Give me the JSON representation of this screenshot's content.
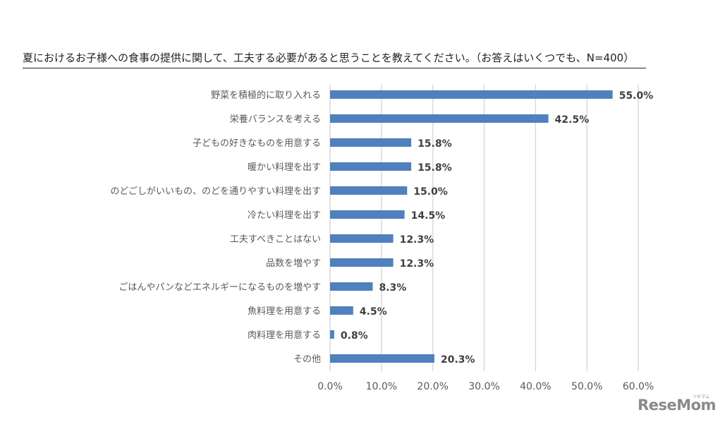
{
  "chart_data": {
    "type": "bar",
    "orientation": "horizontal",
    "title": "夏におけるお子様への食事の提供に関して、工夫する必要があると思うことを教えてください。（お答えはいくつでも、N=400）",
    "categories": [
      "野菜を積極的に取り入れる",
      "栄養バランスを考える",
      "子どもの好きなものを用意する",
      "暖かい料理を出す",
      "のどごしがいいもの、のどを通りやすい料理を出す",
      "冷たい料理を出す",
      "工夫すべきことはない",
      "品数を増やす",
      "ごはんやパンなどエネルギーになるものを増やす",
      "魚料理を用意する",
      "肉料理を用意する",
      "その他"
    ],
    "values": [
      55.0,
      42.5,
      15.8,
      15.8,
      15.0,
      14.5,
      12.3,
      12.3,
      8.3,
      4.5,
      0.8,
      20.3
    ],
    "value_labels": [
      "55.0%",
      "42.5%",
      "15.8%",
      "15.8%",
      "15.0%",
      "14.5%",
      "12.3%",
      "12.3%",
      "8.3%",
      "4.5%",
      "0.8%",
      "20.3%"
    ],
    "xlim": [
      0,
      60
    ],
    "xticks": [
      "0.0%",
      "10.0%",
      "20.0%",
      "30.0%",
      "40.0%",
      "50.0%",
      "60.0%"
    ],
    "grid": true,
    "legend": false,
    "bar_color": "#4f81bd",
    "grid_color": "#d9d9d9"
  },
  "logo": {
    "text": "ReseMom",
    "sub": "リセマム"
  }
}
